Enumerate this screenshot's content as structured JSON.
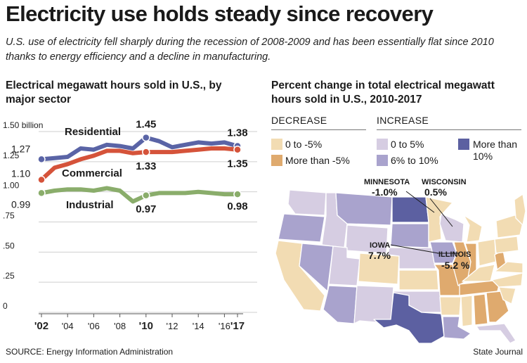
{
  "title": "Electricity use holds steady since recovery",
  "subtitle": "U.S. use of electricity fell sharply during the recession of 2008-2009 and has been essentially flat since 2010 thanks to energy efficiency and a decline in manufacturing.",
  "source": "SOURCE: Energy Information Administration",
  "credit": "State Journal",
  "colors": {
    "residential": "#5a64a6",
    "commercial": "#d5533a",
    "industrial": "#8aad6b",
    "decrease_small": "#f2dcb3",
    "decrease_large": "#dfaa6e",
    "increase_small": "#d6cde2",
    "increase_mid": "#a9a3cd",
    "increase_large": "#5c60a1"
  },
  "chart_data": [
    {
      "type": "line",
      "title": "Electrical megawatt hours sold in U.S., by major sector",
      "ylim": [
        0,
        1.5
      ],
      "yticks": [
        {
          "value": 1.5,
          "label": "1.50 billion"
        },
        {
          "value": 1.25,
          "label": "1.25"
        },
        {
          "value": 1.0,
          "label": "1.00"
        },
        {
          "value": 0.75,
          "label": ".75"
        },
        {
          "value": 0.5,
          "label": ".50"
        },
        {
          "value": 0.25,
          "label": ".25"
        },
        {
          "value": 0,
          "label": "0"
        }
      ],
      "xticks": [
        {
          "value": 2002,
          "label": "'02",
          "bold": true
        },
        {
          "value": 2004,
          "label": "'04",
          "bold": false
        },
        {
          "value": 2006,
          "label": "'06",
          "bold": false
        },
        {
          "value": 2008,
          "label": "'08",
          "bold": false
        },
        {
          "value": 2010,
          "label": "'10",
          "bold": true
        },
        {
          "value": 2012,
          "label": "'12",
          "bold": false
        },
        {
          "value": 2014,
          "label": "'14",
          "bold": false
        },
        {
          "value": 2016,
          "label": "'16",
          "bold": false
        },
        {
          "value": 2017,
          "label": "'17",
          "bold": true
        }
      ],
      "x": [
        2002,
        2003,
        2004,
        2005,
        2006,
        2007,
        2008,
        2009,
        2010,
        2011,
        2012,
        2013,
        2014,
        2015,
        2016,
        2017
      ],
      "series": [
        {
          "name": "Residential",
          "key": "residential",
          "values": [
            1.27,
            1.28,
            1.29,
            1.36,
            1.35,
            1.39,
            1.38,
            1.36,
            1.45,
            1.42,
            1.37,
            1.39,
            1.41,
            1.4,
            1.41,
            1.38
          ],
          "labels": [
            {
              "x": 2002,
              "text": "1.27"
            },
            {
              "x": 2010,
              "text": "1.45"
            },
            {
              "x": 2017,
              "text": "1.38"
            }
          ]
        },
        {
          "name": "Commercial",
          "key": "commercial",
          "values": [
            1.1,
            1.2,
            1.23,
            1.27,
            1.3,
            1.34,
            1.34,
            1.32,
            1.33,
            1.33,
            1.33,
            1.34,
            1.35,
            1.36,
            1.36,
            1.35
          ],
          "labels": [
            {
              "x": 2002,
              "text": "1.10"
            },
            {
              "x": 2010,
              "text": "1.33"
            },
            {
              "x": 2017,
              "text": "1.35"
            }
          ]
        },
        {
          "name": "Industrial",
          "key": "industrial",
          "values": [
            0.99,
            1.01,
            1.02,
            1.02,
            1.01,
            1.03,
            1.01,
            0.92,
            0.97,
            0.99,
            0.99,
            0.99,
            1.0,
            0.99,
            0.98,
            0.98
          ],
          "labels": [
            {
              "x": 2002,
              "text": "0.99"
            },
            {
              "x": 2010,
              "text": "0.97"
            },
            {
              "x": 2017,
              "text": "0.98"
            }
          ]
        }
      ]
    },
    {
      "type": "map",
      "title": "Percent change in total electrical megawatt hours sold in U.S., 2010-2017",
      "legend": {
        "decrease_heading": "DECREASE",
        "increase_heading": "INCREASE",
        "items": [
          {
            "key": "decrease_small",
            "label": "0 to -5%"
          },
          {
            "key": "decrease_large",
            "label": "More than -5%"
          },
          {
            "key": "increase_small",
            "label": "0 to 5%"
          },
          {
            "key": "increase_mid",
            "label": "6% to 10%"
          },
          {
            "key": "increase_large",
            "label": "More than 10%"
          }
        ]
      },
      "callouts": [
        {
          "state": "MINNESOTA",
          "value": "-1.0%"
        },
        {
          "state": "WISCONSIN",
          "value": "0.5%"
        },
        {
          "state": "IOWA",
          "value": "7.7%"
        },
        {
          "state": "ILLINOIS",
          "value": "-5.2 %"
        }
      ]
    }
  ]
}
